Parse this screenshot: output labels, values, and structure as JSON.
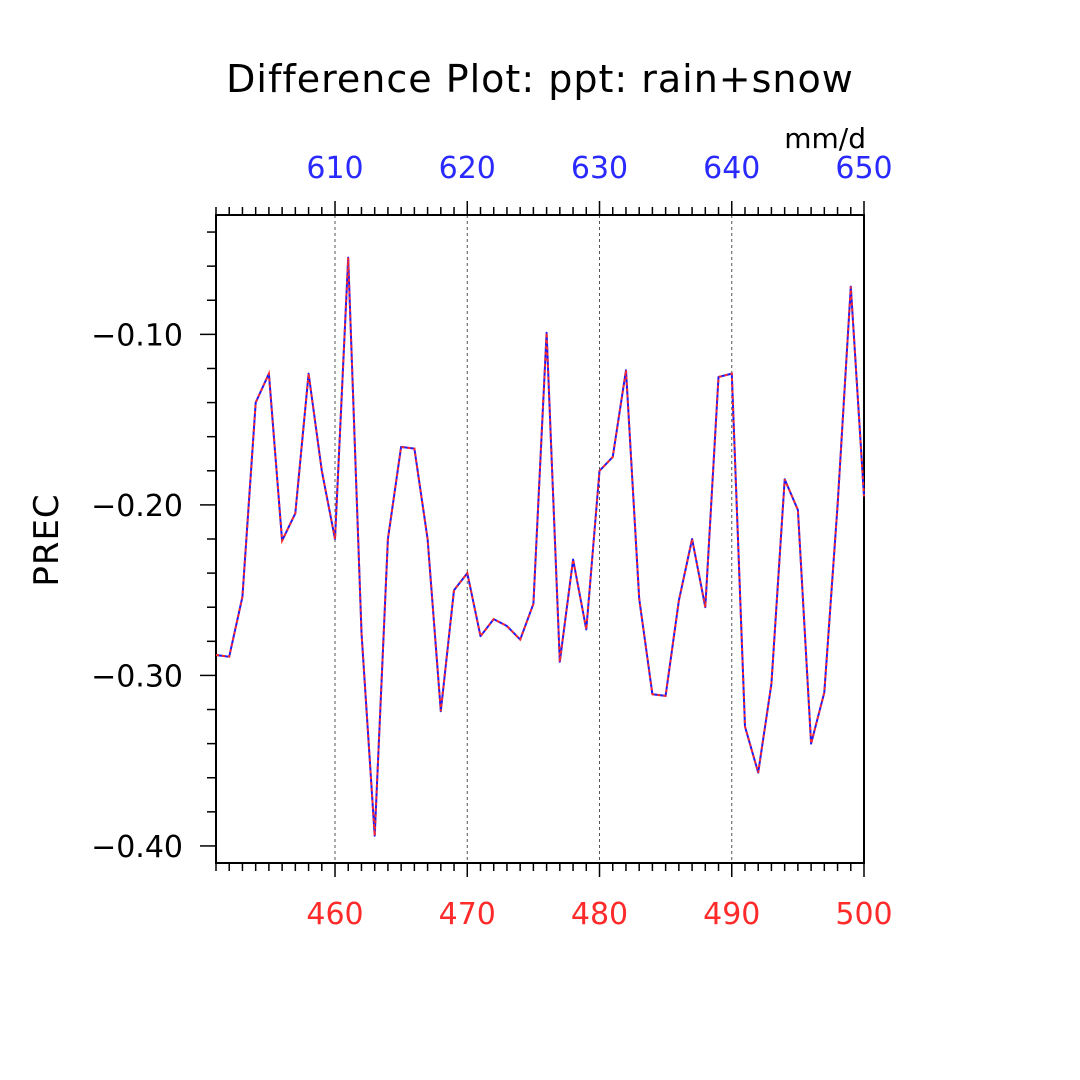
{
  "chart_data": {
    "type": "line",
    "title": "Difference Plot: ppt: rain+snow",
    "units": "mm/d",
    "ylabel": "PREC",
    "xlim": [
      451,
      500
    ],
    "x2lim": [
      601,
      650
    ],
    "ylim": [
      -0.41,
      -0.03
    ],
    "x_ticks": [
      460,
      470,
      480,
      490,
      500
    ],
    "x2_ticks": [
      610,
      620,
      630,
      640,
      650
    ],
    "y_ticks": [
      -0.1,
      -0.2,
      -0.3,
      -0.4
    ],
    "y_tick_labels": [
      "−0.10",
      "−0.20",
      "−0.30",
      "−0.40"
    ],
    "grid": "vertical dashed",
    "colors": {
      "bottom_axis": "#ff2a2a",
      "top_axis": "#2a2aff",
      "line_solid": "#1a1aff",
      "line_dash": "#ff2a2a",
      "text": "#000000"
    },
    "x": [
      451,
      452,
      453,
      454,
      455,
      456,
      457,
      458,
      459,
      460,
      461,
      462,
      463,
      464,
      465,
      466,
      467,
      468,
      469,
      470,
      471,
      472,
      473,
      474,
      475,
      476,
      477,
      478,
      479,
      480,
      481,
      482,
      483,
      484,
      485,
      486,
      487,
      488,
      489,
      490,
      491,
      492,
      493,
      494,
      495,
      496,
      497,
      498,
      499,
      500
    ],
    "values": [
      -0.288,
      -0.289,
      -0.254,
      -0.14,
      -0.123,
      -0.221,
      -0.205,
      -0.123,
      -0.18,
      -0.22,
      -0.055,
      -0.275,
      -0.394,
      -0.22,
      -0.166,
      -0.167,
      -0.22,
      -0.321,
      -0.25,
      -0.24,
      -0.277,
      -0.267,
      -0.271,
      -0.279,
      -0.258,
      -0.099,
      -0.292,
      -0.232,
      -0.273,
      -0.18,
      -0.172,
      -0.121,
      -0.255,
      -0.311,
      -0.312,
      -0.256,
      -0.22,
      -0.26,
      -0.125,
      -0.123,
      -0.33,
      -0.357,
      -0.305,
      -0.185,
      -0.203,
      -0.34,
      -0.31,
      -0.2,
      -0.072,
      -0.195
    ]
  }
}
